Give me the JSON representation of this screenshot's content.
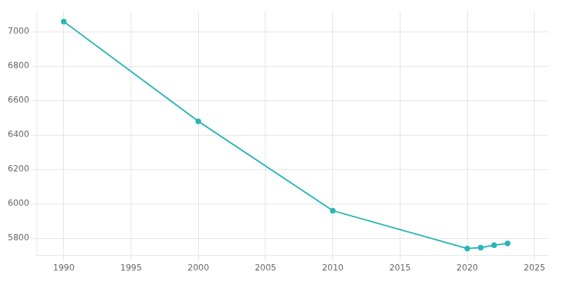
{
  "chart_data": {
    "type": "line",
    "x": [
      1990,
      2000,
      2010,
      2020,
      2021,
      2022,
      2023
    ],
    "values": [
      7060,
      6480,
      5960,
      5740,
      5745,
      5760,
      5770
    ],
    "color": "#2ab5b5",
    "marker": "circle",
    "xlim": [
      1988,
      2026
    ],
    "ylim": [
      5700,
      7120
    ],
    "xticks": [
      1990,
      1995,
      2000,
      2005,
      2010,
      2015,
      2020,
      2025
    ],
    "yticks": [
      5800,
      6000,
      6200,
      6400,
      6600,
      6800,
      7000
    ],
    "grid": true
  }
}
